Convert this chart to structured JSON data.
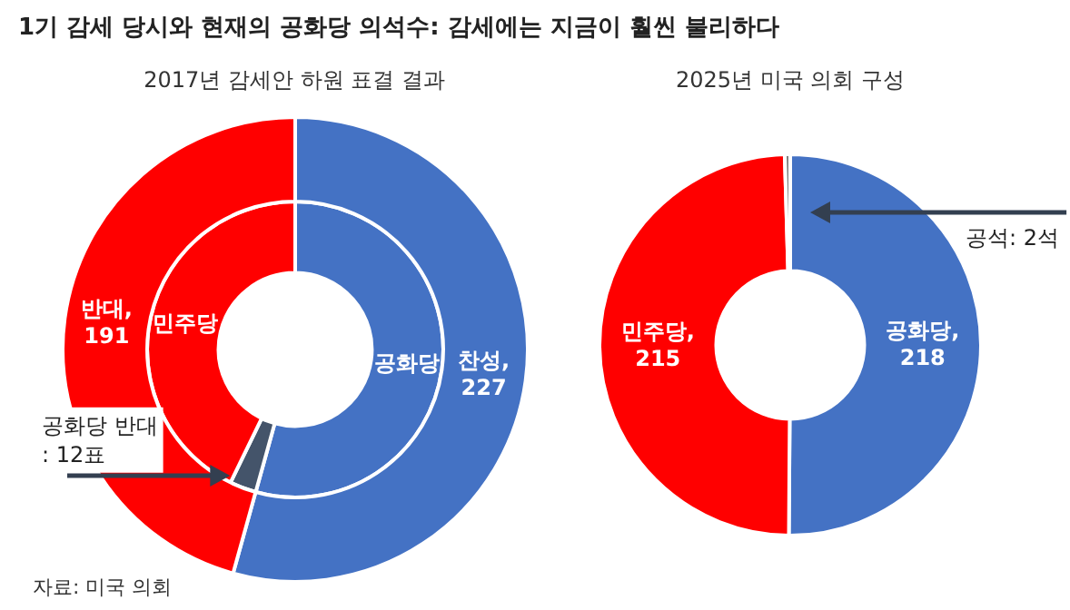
{
  "chart_data": [
    {
      "type": "donut",
      "title": "1기 감세 당시와 현재의 공화당 의석수: 감세에는 지금이 훨씬 불리하다",
      "subtitle": "2017년 감세안 하원 표결 결과",
      "series": [
        {
          "values": [
            227,
            191
          ],
          "colors": [
            "#4472c4",
            "#ff0000"
          ],
          "value_labels": [
            "찬성,\n227",
            "반대,\n191"
          ]
        },
        {
          "values": [
            54.3,
            2.9,
            42.8
          ],
          "colors": [
            "#4472c4",
            "#44546a",
            "#ff0000"
          ],
          "value_labels": [
            "공화당",
            null,
            "민주당"
          ]
        }
      ],
      "annotations": [
        "공화당 반대\n: 12표",
        "자료: 미국 의회"
      ]
    },
    {
      "type": "donut",
      "title": "2025년 미국 의회 구성",
      "series": [
        {
          "values": [
            218,
            215,
            2
          ],
          "colors": [
            "#4472c4",
            "#ff0000",
            "#7f7f7f"
          ],
          "value_labels": [
            "공화당,\n218",
            "민주당,\n215",
            null
          ]
        }
      ],
      "annotations": [
        "공석: 2석"
      ]
    }
  ]
}
